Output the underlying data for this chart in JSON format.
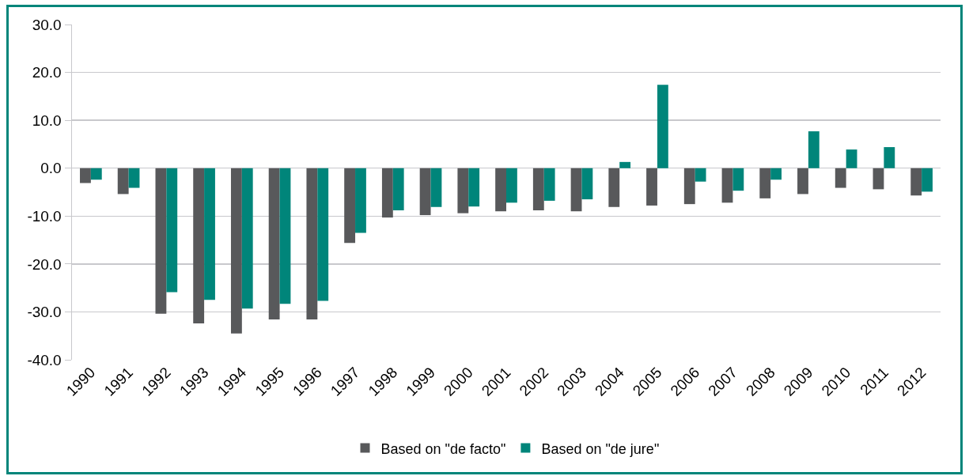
{
  "chart_data": {
    "type": "bar",
    "categories": [
      "1990",
      "1991",
      "1992",
      "1993",
      "1994",
      "1995",
      "1996",
      "1997",
      "1998",
      "1999",
      "2000",
      "2001",
      "2002",
      "2003",
      "2004",
      "2005",
      "2006",
      "2007",
      "2008",
      "2009",
      "2010",
      "2011",
      "2012"
    ],
    "series": [
      {
        "name": "Based on \"de facto\"",
        "color": "#58595b",
        "values": [
          -3.1,
          -5.4,
          -30.4,
          -32.4,
          -34.5,
          -31.6,
          -31.6,
          -15.6,
          -10.3,
          -9.8,
          -9.4,
          -9.0,
          -8.8,
          -9.0,
          -8.1,
          -7.8,
          -7.5,
          -7.2,
          -6.3,
          -5.4,
          -4.1,
          -4.4,
          -5.7
        ]
      },
      {
        "name": "Based on \"de jure\"",
        "color": "#00857a",
        "values": [
          -2.4,
          -4.1,
          -25.9,
          -27.5,
          -29.3,
          -28.3,
          -27.7,
          -13.5,
          -8.8,
          -8.1,
          -8.0,
          -7.2,
          -6.8,
          -6.5,
          1.3,
          17.4,
          -2.8,
          -4.7,
          -2.4,
          7.7,
          3.9,
          4.4,
          -4.9
        ]
      }
    ],
    "ylim": [
      -40,
      30
    ],
    "yticks": [
      {
        "value": -40,
        "label": "-40.0"
      },
      {
        "value": -30,
        "label": "-30.0"
      },
      {
        "value": -20,
        "label": "-20.0"
      },
      {
        "value": -10,
        "label": "-10.0"
      },
      {
        "value": 0,
        "label": "0.0"
      },
      {
        "value": 10,
        "label": "10.0"
      },
      {
        "value": 20,
        "label": "20.0"
      },
      {
        "value": 30,
        "label": "30.0"
      }
    ],
    "grid": "y",
    "legend": "bottom"
  }
}
